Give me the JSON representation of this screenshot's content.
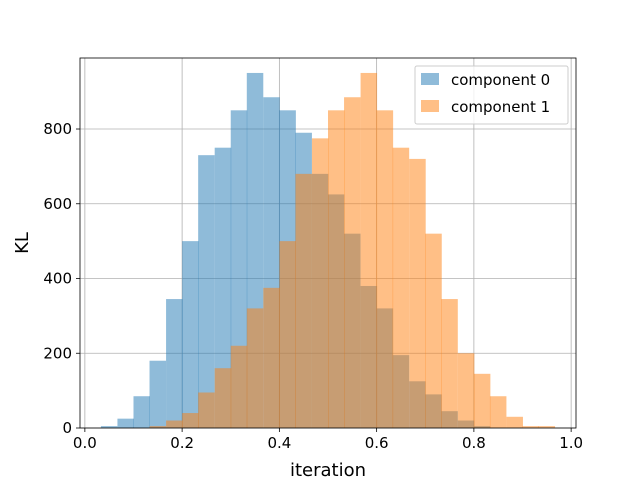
{
  "chart_data": {
    "type": "bar",
    "subtype": "overlapping-histogram",
    "xlabel": "iteration",
    "ylabel": "KL",
    "xlim": [
      -0.01,
      1.01
    ],
    "ylim": [
      0,
      990
    ],
    "xticks": [
      "0.0",
      "0.2",
      "0.4",
      "0.6",
      "0.8",
      "1.0"
    ],
    "yticks": [
      "0",
      "200",
      "400",
      "600",
      "800"
    ],
    "grid": true,
    "legend_position": "top-right",
    "bin_width": 0.0333,
    "series": [
      {
        "name": "component 0",
        "color": "#1f77b4",
        "opacity": 0.5,
        "bin_starts": [
          0.033,
          0.067,
          0.1,
          0.133,
          0.167,
          0.2,
          0.233,
          0.267,
          0.3,
          0.333,
          0.367,
          0.4,
          0.433,
          0.467,
          0.5,
          0.533,
          0.567,
          0.6,
          0.633,
          0.667,
          0.7,
          0.733,
          0.767,
          0.8
        ],
        "values": [
          5,
          25,
          85,
          180,
          345,
          500,
          730,
          750,
          850,
          950,
          885,
          850,
          790,
          680,
          625,
          520,
          380,
          320,
          195,
          125,
          90,
          45,
          20,
          5
        ]
      },
      {
        "name": "component 1",
        "color": "#ff7f0e",
        "opacity": 0.5,
        "bin_starts": [
          0.133,
          0.167,
          0.2,
          0.233,
          0.267,
          0.3,
          0.333,
          0.367,
          0.4,
          0.433,
          0.467,
          0.5,
          0.533,
          0.567,
          0.6,
          0.633,
          0.667,
          0.7,
          0.733,
          0.767,
          0.8,
          0.833,
          0.867,
          0.9,
          0.933
        ],
        "values": [
          5,
          20,
          40,
          95,
          160,
          220,
          320,
          375,
          500,
          680,
          775,
          850,
          885,
          950,
          850,
          750,
          720,
          520,
          345,
          200,
          145,
          85,
          30,
          5,
          5
        ]
      }
    ]
  }
}
